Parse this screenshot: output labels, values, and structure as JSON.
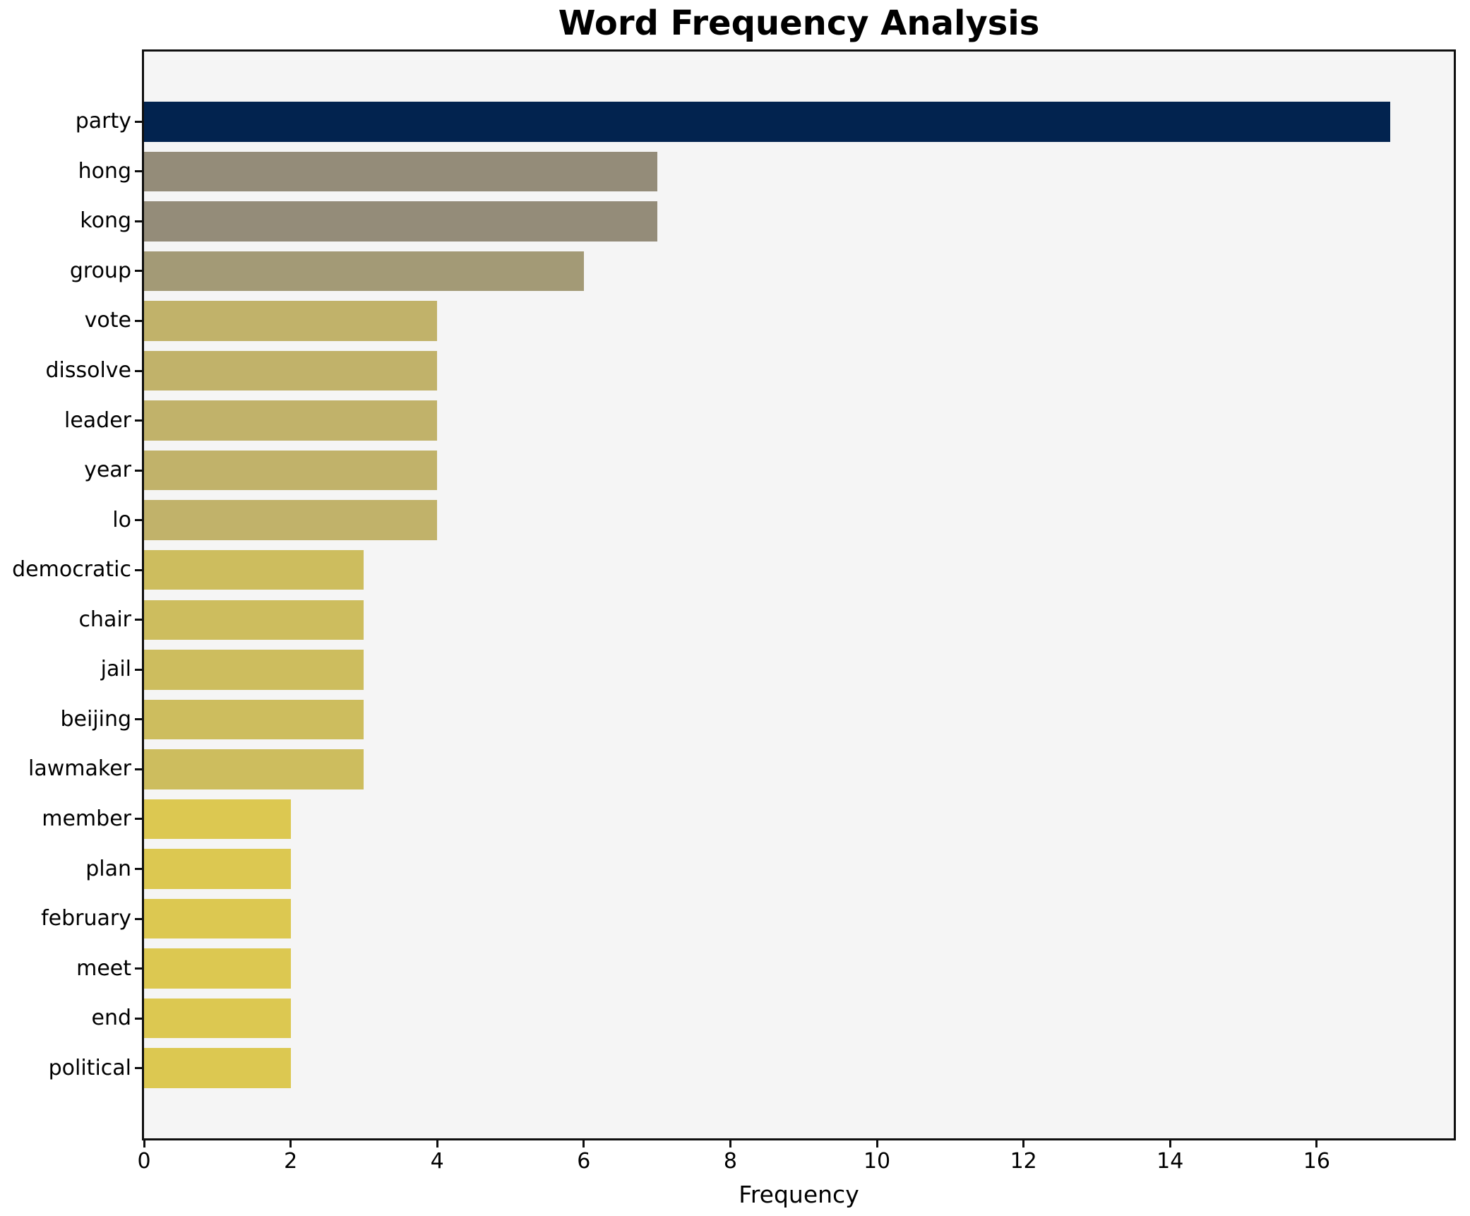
{
  "chart_data": {
    "type": "bar",
    "orientation": "horizontal",
    "title": "Word Frequency Analysis",
    "xlabel": "Frequency",
    "ylabel": "",
    "categories": [
      "party",
      "hong",
      "kong",
      "group",
      "vote",
      "dissolve",
      "leader",
      "year",
      "lo",
      "democratic",
      "chair",
      "jail",
      "beijing",
      "lawmaker",
      "member",
      "plan",
      "february",
      "meet",
      "end",
      "political"
    ],
    "values": [
      17,
      7,
      7,
      6,
      4,
      4,
      4,
      4,
      4,
      3,
      3,
      3,
      3,
      3,
      2,
      2,
      2,
      2,
      2,
      2
    ],
    "bar_colors": [
      "#02234f",
      "#948c79",
      "#948c79",
      "#a39a76",
      "#c1b26a",
      "#c1b26a",
      "#c1b26a",
      "#c1b26a",
      "#c1b26a",
      "#cdbd5e",
      "#cdbd5e",
      "#cdbd5e",
      "#cdbd5e",
      "#cdbd5e",
      "#dcc851",
      "#dcc851",
      "#dcc851",
      "#dcc851",
      "#dcc851",
      "#dcc851"
    ],
    "xlim": [
      0,
      17.87
    ],
    "x_ticks": [
      0,
      2,
      4,
      6,
      8,
      10,
      12,
      14,
      16
    ],
    "grid": false,
    "legend": null,
    "plot_background": "#f5f5f5",
    "figure_background": "#ffffff",
    "axis_color": "#0f0f0f"
  }
}
